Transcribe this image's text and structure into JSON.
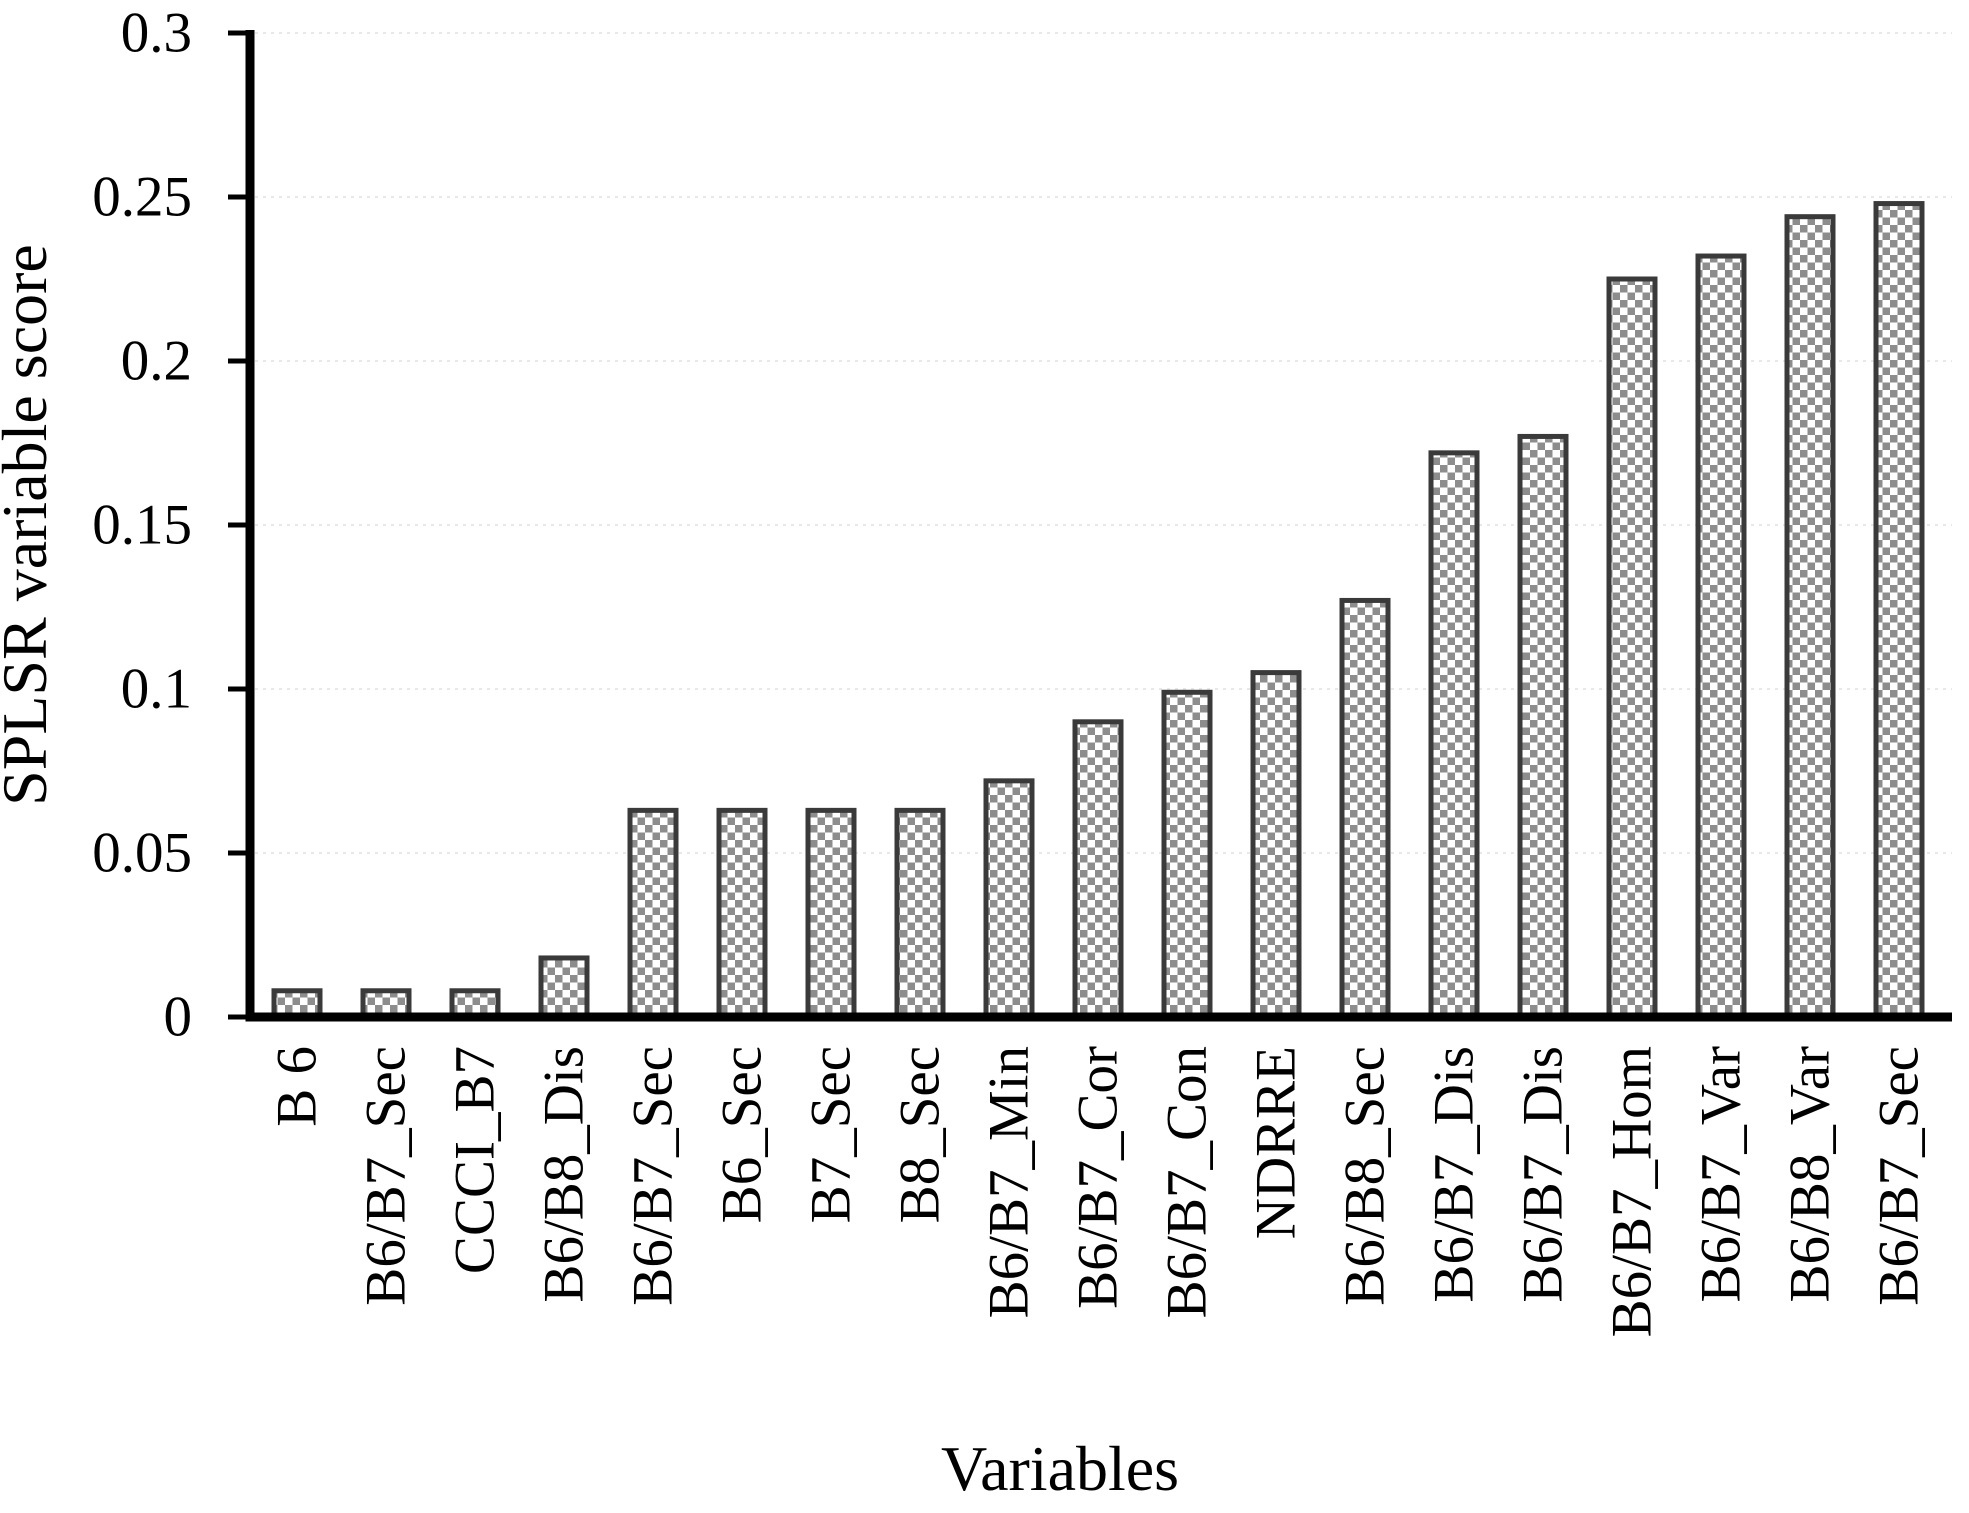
{
  "chart_data": {
    "type": "bar",
    "title": "",
    "xlabel": "Variables",
    "ylabel": "SPLSR variable score",
    "categories": [
      "B 6",
      "B6/B7_Sec",
      "CCCI_B7",
      "B6/B8_Dis",
      "B6/B7_Sec",
      "B6_Sec",
      "B7_Sec",
      "B8_Sec",
      "B6/B7_Min",
      "B6/B7_Cor",
      "B6/B7_Con",
      "NDRRE",
      "B6/B8_Sec",
      "B6/B7_Dis",
      "B6/B7_Dis",
      "B6/B7_Hom",
      "B6/B7_Var",
      "B6/B8_Var",
      "B6/B7_Sec"
    ],
    "values": [
      0.008,
      0.008,
      0.008,
      0.018,
      0.063,
      0.063,
      0.063,
      0.063,
      0.072,
      0.09,
      0.099,
      0.105,
      0.127,
      0.172,
      0.177,
      0.225,
      0.232,
      0.244,
      0.248
    ],
    "ylim": [
      0,
      0.3
    ],
    "yticks": [
      0,
      0.05,
      0.1,
      0.15,
      0.2,
      0.25,
      0.3
    ],
    "ytick_labels": [
      "0",
      "0.05",
      "0.1",
      "0.15",
      "0.2",
      "0.25",
      "0.3"
    ],
    "grid": "horizontal dotted, very faint",
    "legend": null,
    "bar_style": "white bars with gray checkerboard pattern fill and dark gray outline",
    "colors": {
      "background": "#ffffff",
      "axis": "#000000",
      "text": "#000000",
      "bar_outline": "#3a3a3a",
      "bar_pattern_gray": "#8d8d8d",
      "bar_pattern_bg": "#ffffff",
      "gridline": "#e8e8e8"
    }
  }
}
